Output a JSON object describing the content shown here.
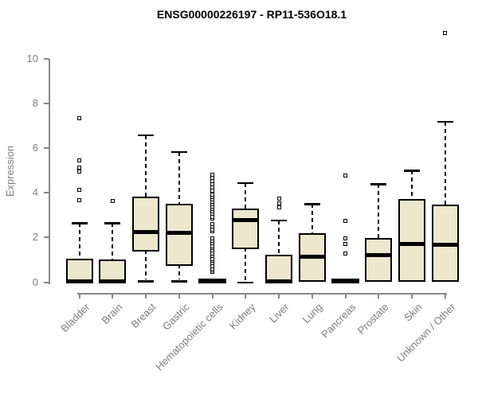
{
  "chart_data": {
    "type": "boxplot",
    "title": "ENSG00000226197 - RP11-536O18.1",
    "ylabel": "Expression",
    "xlabel": "",
    "ylim": [
      0,
      10
    ],
    "yticks": [
      0,
      2,
      4,
      6,
      8,
      10
    ],
    "grid": "off",
    "legend": "none",
    "colors": {
      "box_fill": "#EDE7CD",
      "box_border": "#000000",
      "median": "#000000",
      "axis": "#888888",
      "tick_text": "#7E7E7E",
      "title_text": "#000000"
    },
    "categories": [
      "Bladder",
      "Brain",
      "Breast",
      "Gastric",
      "Hematopoietic cells",
      "Kidney",
      "Liver",
      "Lung",
      "Pancreas",
      "Prostate",
      "Skin",
      "Unknown / Other"
    ],
    "boxes": [
      {
        "category": "Bladder",
        "whisker_low": 0,
        "q1": 0,
        "median": 0.05,
        "q3": 1.05,
        "whisker_high": 2.65,
        "outliers": [
          3.67,
          4.15,
          4.95,
          5.12,
          5.46,
          7.35
        ]
      },
      {
        "category": "Brain",
        "whisker_low": 0,
        "q1": 0,
        "median": 0.05,
        "q3": 1.02,
        "whisker_high": 2.65,
        "outliers": [
          3.63
        ]
      },
      {
        "category": "Breast",
        "whisker_low": 0.04,
        "q1": 1.39,
        "median": 2.24,
        "q3": 3.83,
        "whisker_high": 6.59,
        "outliers": []
      },
      {
        "category": "Gastric",
        "whisker_low": 0.05,
        "q1": 0.72,
        "median": 2.21,
        "q3": 3.52,
        "whisker_high": 5.84,
        "outliers": []
      },
      {
        "category": "Hematopoietic cells",
        "whisker_low": 0,
        "q1": 0,
        "median": 0.05,
        "q3": 0.1,
        "whisker_high": 0.1,
        "outliers": [
          0.45,
          0.52,
          0.62,
          0.73,
          0.84,
          0.95,
          1.05,
          1.16,
          1.3,
          1.41,
          1.52,
          1.62,
          1.73,
          1.84,
          1.95,
          2.27,
          2.37,
          2.48,
          2.59,
          2.84,
          2.94,
          3.05,
          3.16,
          3.27,
          3.37,
          3.48,
          3.59,
          3.7,
          3.8,
          3.91,
          4.09,
          4.23,
          4.38,
          4.52,
          4.66,
          4.8
        ]
      },
      {
        "category": "Kidney",
        "whisker_low": 0,
        "q1": 1.49,
        "median": 2.78,
        "q3": 3.28,
        "whisker_high": 4.45,
        "outliers": []
      },
      {
        "category": "Liver",
        "whisker_low": 0,
        "q1": 0,
        "median": 0.05,
        "q3": 1.23,
        "whisker_high": 2.78,
        "outliers": [
          3.35,
          3.52,
          3.76
        ]
      },
      {
        "category": "Lung",
        "whisker_low": 0,
        "q1": 0,
        "median": 1.15,
        "q3": 2.2,
        "whisker_high": 3.5,
        "outliers": []
      },
      {
        "category": "Pancreas",
        "whisker_low": 0,
        "q1": 0,
        "median": 0.05,
        "q3": 0.1,
        "whisker_high": 0.1,
        "outliers": [
          1.29,
          1.71,
          1.97,
          2.74,
          4.77
        ]
      },
      {
        "category": "Prostate",
        "whisker_low": 0,
        "q1": 0,
        "median": 1.2,
        "q3": 1.97,
        "whisker_high": 4.39,
        "outliers": []
      },
      {
        "category": "Skin",
        "whisker_low": 0,
        "q1": 0,
        "median": 1.72,
        "q3": 3.71,
        "whisker_high": 5.0,
        "outliers": []
      },
      {
        "category": "Unknown / Other",
        "whisker_low": 0,
        "q1": 0,
        "median": 1.67,
        "q3": 3.49,
        "whisker_high": 7.2,
        "outliers": [
          11.17
        ]
      }
    ]
  }
}
